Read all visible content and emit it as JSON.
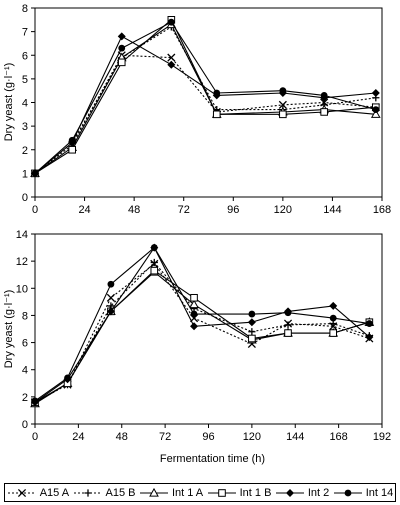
{
  "chart_data": [
    {
      "type": "line",
      "ylabel": "Dry yeast (g·l⁻¹)",
      "xlabel": "",
      "xlim": [
        0,
        168
      ],
      "ylim": [
        0,
        8
      ],
      "x_ticks": [
        0,
        24,
        48,
        72,
        96,
        120,
        144,
        168
      ],
      "y_ticks": [
        0,
        1,
        2,
        3,
        4,
        5,
        6,
        7,
        8
      ],
      "grid": false,
      "series": [
        {
          "name": "A15 A",
          "x": [
            0,
            18,
            42,
            66,
            88,
            120,
            140,
            165
          ],
          "y": [
            1.0,
            2.2,
            6.0,
            5.9,
            3.6,
            3.9,
            4.0,
            3.8
          ]
        },
        {
          "name": "A15 B",
          "x": [
            0,
            18,
            42,
            66,
            88,
            120,
            140,
            165
          ],
          "y": [
            1.0,
            2.3,
            5.9,
            7.2,
            3.7,
            3.7,
            3.9,
            4.2
          ]
        },
        {
          "name": "Int 1 A",
          "x": [
            0,
            18,
            42,
            66,
            88,
            120,
            140,
            165
          ],
          "y": [
            1.0,
            2.1,
            5.9,
            7.3,
            3.5,
            3.6,
            3.7,
            3.5
          ]
        },
        {
          "name": "Int 1 B",
          "x": [
            0,
            18,
            42,
            66,
            88,
            120,
            140,
            165
          ],
          "y": [
            1.0,
            2.0,
            5.7,
            7.5,
            3.5,
            3.5,
            3.6,
            3.8
          ]
        },
        {
          "name": "Int 2",
          "x": [
            0,
            18,
            42,
            66,
            88,
            120,
            140,
            165
          ],
          "y": [
            1.0,
            2.3,
            6.8,
            5.6,
            4.3,
            4.4,
            4.2,
            4.4
          ]
        },
        {
          "name": "Int 14",
          "x": [
            0,
            18,
            42,
            66,
            88,
            120,
            140,
            165
          ],
          "y": [
            1.0,
            2.4,
            6.3,
            7.4,
            4.4,
            4.5,
            4.3,
            3.7
          ]
        }
      ]
    },
    {
      "type": "line",
      "ylabel": "Dry yeast (g·l⁻¹)",
      "xlabel": "Fermentation time (h)",
      "xlim": [
        0,
        192
      ],
      "ylim": [
        0,
        14
      ],
      "x_ticks": [
        0,
        24,
        48,
        72,
        96,
        120,
        144,
        168,
        192
      ],
      "y_ticks": [
        0,
        2,
        4,
        6,
        8,
        10,
        12,
        14
      ],
      "grid": false,
      "series": [
        {
          "name": "A15 A",
          "x": [
            0,
            18,
            42,
            66,
            88,
            120,
            140,
            165,
            185
          ],
          "y": [
            1.6,
            2.9,
            9.3,
            11.8,
            7.8,
            5.9,
            7.4,
            7.2,
            6.3
          ]
        },
        {
          "name": "A15 B",
          "x": [
            0,
            18,
            42,
            66,
            88,
            120,
            140,
            165,
            185
          ],
          "y": [
            1.6,
            2.9,
            8.7,
            11.9,
            8.5,
            6.8,
            7.3,
            7.4,
            6.5
          ]
        },
        {
          "name": "Int 1 A",
          "x": [
            0,
            18,
            42,
            66,
            88,
            120,
            140,
            165,
            185
          ],
          "y": [
            1.5,
            3.0,
            8.3,
            11.2,
            8.8,
            6.2,
            6.7,
            6.7,
            7.5
          ]
        },
        {
          "name": "Int 1 B",
          "x": [
            0,
            18,
            42,
            66,
            88,
            120,
            140,
            165,
            185
          ],
          "y": [
            1.6,
            3.0,
            8.3,
            11.3,
            9.3,
            6.3,
            6.7,
            6.7,
            7.5
          ]
        },
        {
          "name": "Int 2",
          "x": [
            0,
            18,
            42,
            66,
            88,
            120,
            140,
            165,
            185
          ],
          "y": [
            1.6,
            3.3,
            8.3,
            13.0,
            7.2,
            7.5,
            8.3,
            8.7,
            6.4
          ]
        },
        {
          "name": "Int 14",
          "x": [
            0,
            18,
            42,
            66,
            88,
            120,
            140,
            165,
            185
          ],
          "y": [
            1.7,
            3.4,
            10.3,
            13.0,
            8.1,
            8.1,
            8.2,
            7.8,
            7.4
          ]
        }
      ]
    }
  ],
  "legend": [
    {
      "label": "A15 A",
      "marker": "x",
      "dash": "dotted"
    },
    {
      "label": "A15 B",
      "marker": "plus",
      "dash": "dotted"
    },
    {
      "label": "Int 1 A",
      "marker": "triangle",
      "dash": "solid"
    },
    {
      "label": "Int 1 B",
      "marker": "square",
      "dash": "solid"
    },
    {
      "label": "Int 2",
      "marker": "diamond",
      "dash": "solid"
    },
    {
      "label": "Int 14",
      "marker": "circle",
      "dash": "solid"
    }
  ],
  "style": {
    "line_color": "#000000",
    "background": "#ffffff"
  }
}
